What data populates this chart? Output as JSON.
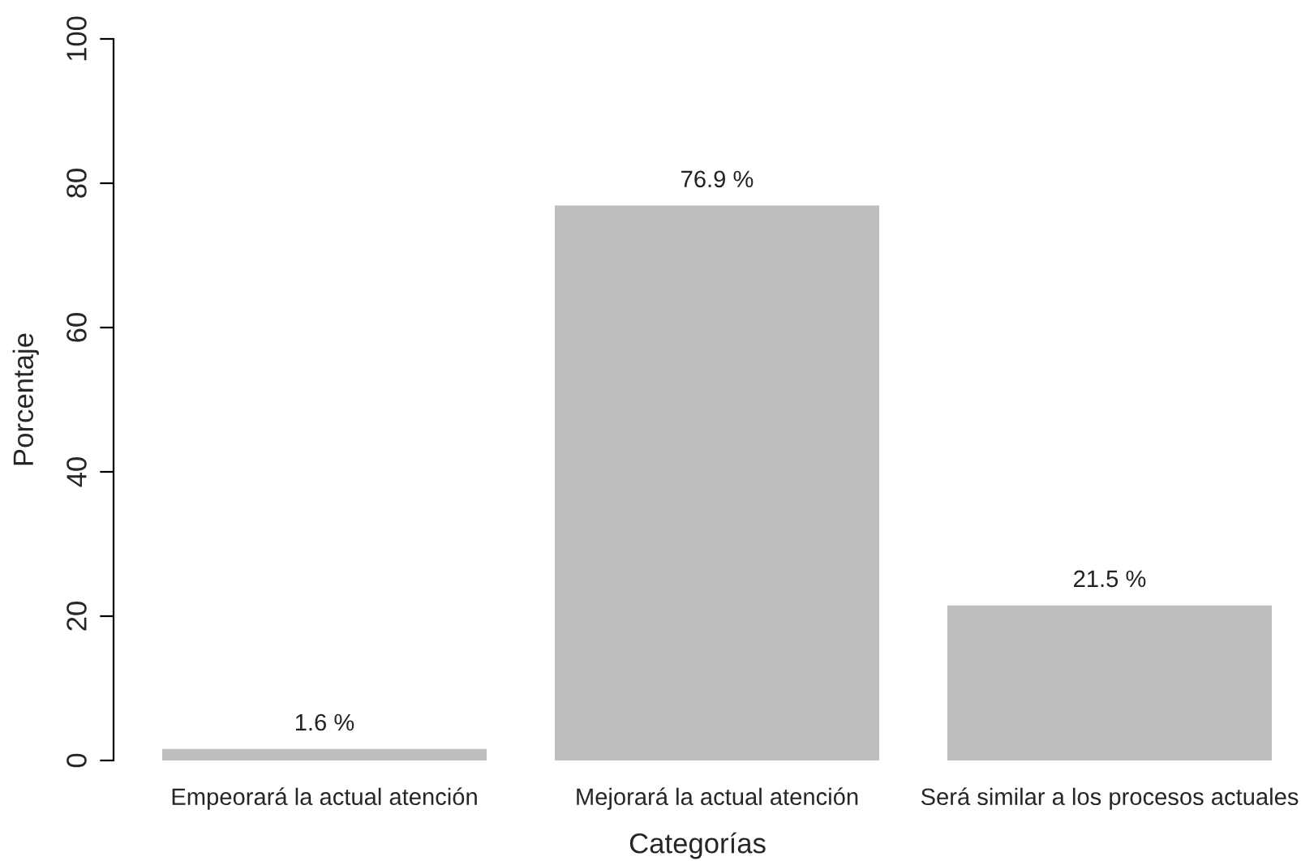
{
  "chart_data": {
    "type": "bar",
    "xlabel": "Categorías",
    "ylabel": "Porcentaje",
    "categories": [
      "Empeorará la actual atención",
      "Mejorará la actual atención",
      "Será similar a los procesos actuales"
    ],
    "values": [
      1.6,
      76.9,
      21.5
    ],
    "value_labels": [
      "1.6 %",
      "76.9 %",
      "21.5 %"
    ],
    "color": "#bebebe",
    "ylim": [
      0,
      100
    ],
    "yticks": [
      0,
      20,
      40,
      60,
      80,
      100
    ],
    "grid": false,
    "legend": false
  }
}
